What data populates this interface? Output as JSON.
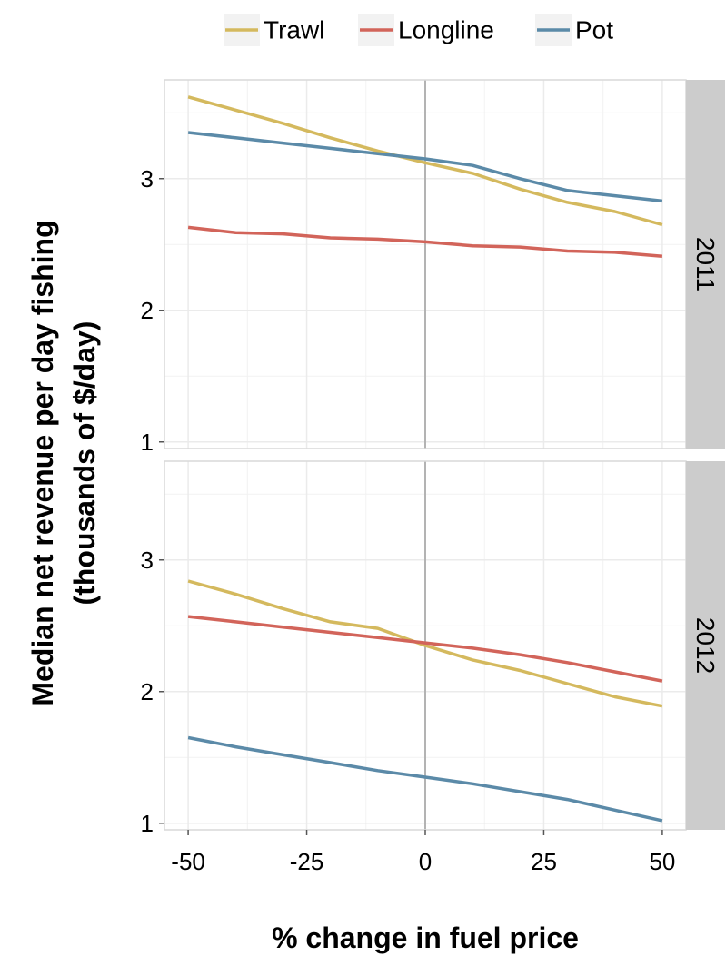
{
  "chart_data": {
    "type": "line",
    "xlabel": "% change in fuel price",
    "ylabel_line1": "Median net revenue per day fishing",
    "ylabel_line2": "(thousands of $/day)",
    "xlim": [
      -55,
      55
    ],
    "ylim": [
      0.95,
      3.75
    ],
    "x_ticks": [
      -50,
      -25,
      0,
      25,
      50
    ],
    "x_tick_labels": [
      "-50",
      "-25",
      "0",
      "25",
      "50"
    ],
    "y_ticks": [
      1,
      2,
      3
    ],
    "y_tick_labels": [
      "1",
      "2",
      "3"
    ],
    "grid": true,
    "legend_position": "top",
    "legend": [
      {
        "name": "Trawl",
        "color": "#d4b95e"
      },
      {
        "name": "Longline",
        "color": "#d2645a"
      },
      {
        "name": "Pot",
        "color": "#5b8aa8"
      }
    ],
    "x": [
      -50,
      -40,
      -30,
      -20,
      -10,
      0,
      10,
      20,
      30,
      40,
      50
    ],
    "panels": [
      {
        "label": "2011",
        "series": [
          {
            "name": "Trawl",
            "values": [
              3.62,
              3.52,
              3.42,
              3.31,
              3.21,
              3.12,
              3.04,
              2.92,
              2.82,
              2.75,
              2.65
            ]
          },
          {
            "name": "Longline",
            "values": [
              2.63,
              2.59,
              2.58,
              2.55,
              2.54,
              2.52,
              2.49,
              2.48,
              2.45,
              2.44,
              2.41
            ]
          },
          {
            "name": "Pot",
            "values": [
              3.35,
              3.31,
              3.27,
              3.23,
              3.19,
              3.15,
              3.1,
              3.0,
              2.91,
              2.87,
              2.83
            ]
          }
        ]
      },
      {
        "label": "2012",
        "series": [
          {
            "name": "Trawl",
            "values": [
              2.84,
              2.74,
              2.63,
              2.53,
              2.48,
              2.35,
              2.24,
              2.16,
              2.06,
              1.96,
              1.89
            ]
          },
          {
            "name": "Longline",
            "values": [
              2.57,
              2.53,
              2.49,
              2.45,
              2.41,
              2.37,
              2.33,
              2.28,
              2.22,
              2.15,
              2.08
            ]
          },
          {
            "name": "Pot",
            "values": [
              1.65,
              1.58,
              1.52,
              1.46,
              1.4,
              1.35,
              1.3,
              1.24,
              1.18,
              1.1,
              1.02
            ]
          }
        ]
      }
    ]
  }
}
